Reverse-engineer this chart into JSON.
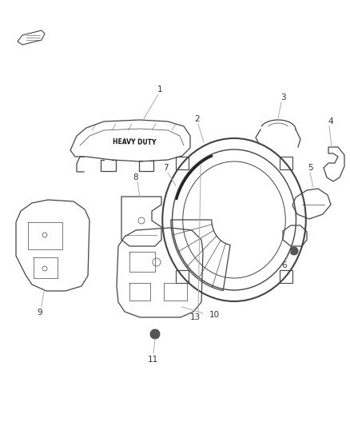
{
  "background_color": "#ffffff",
  "fig_width": 4.38,
  "fig_height": 5.33,
  "dpi": 100,
  "line_color": "#444444",
  "light_line": "#aaaaaa",
  "label_color": "#333333"
}
